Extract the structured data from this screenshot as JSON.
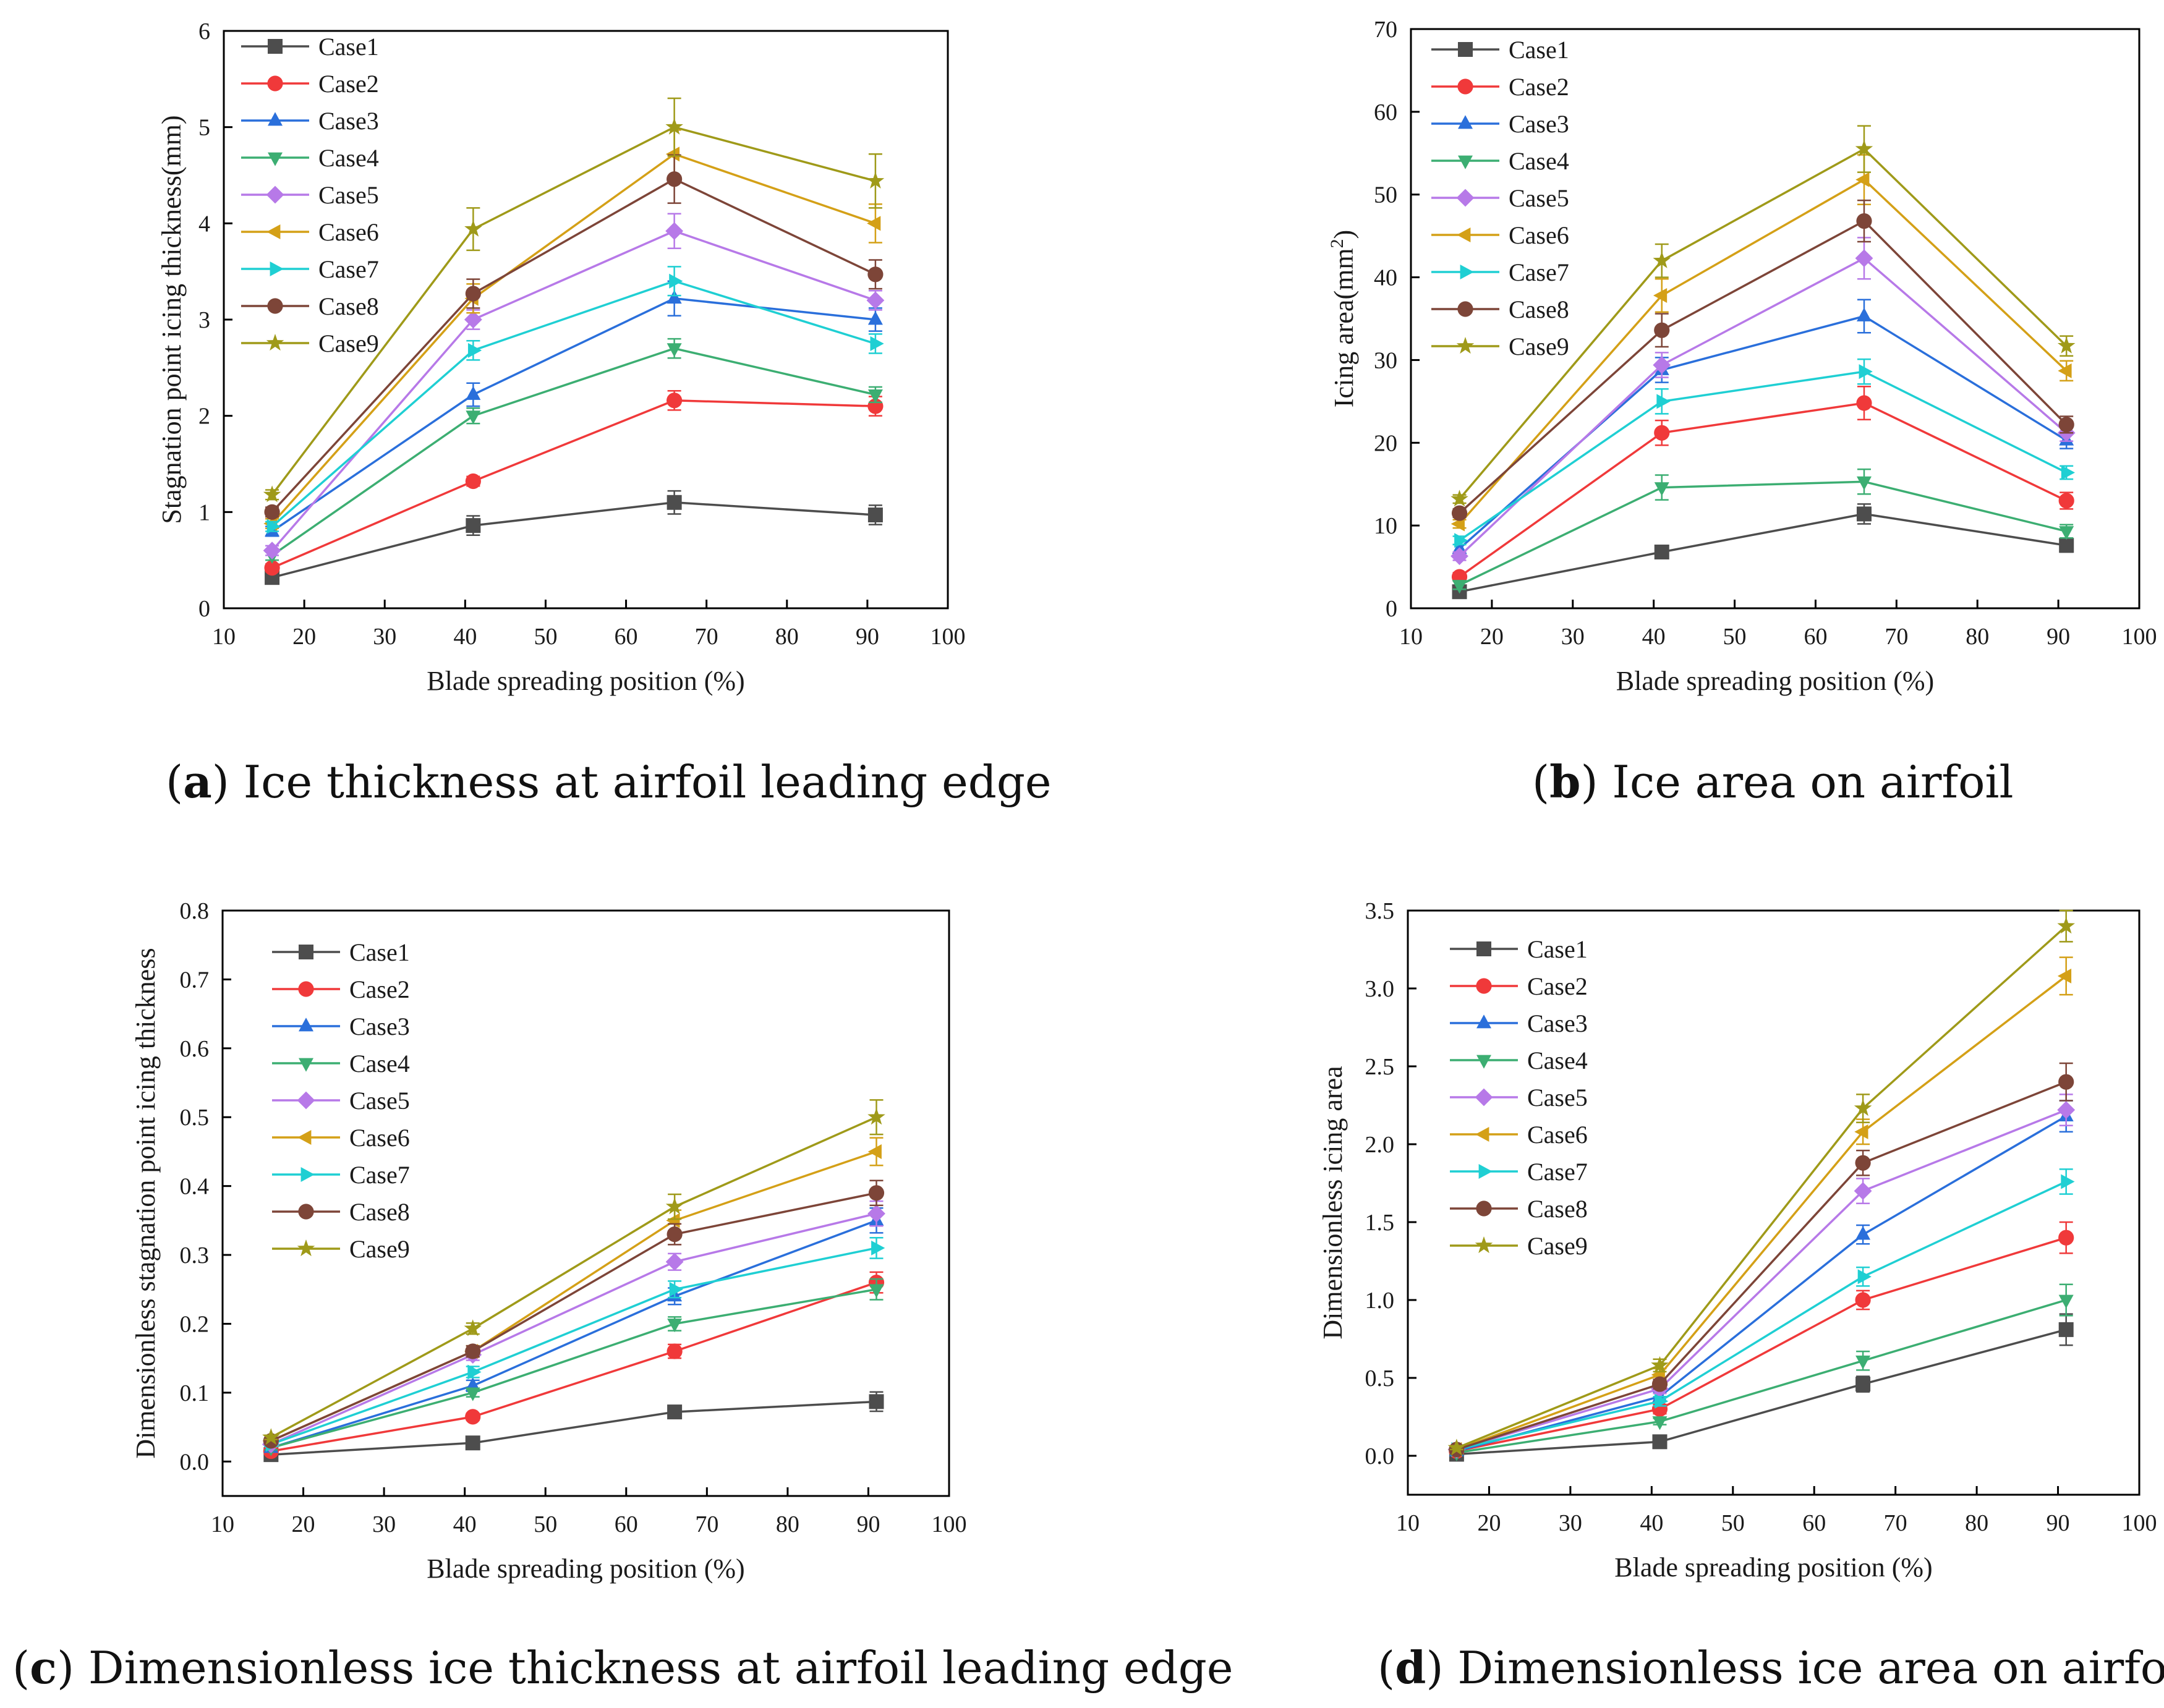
{
  "figure": {
    "colors": {
      "Case1": "#4d4d4d",
      "Case2": "#f0393a",
      "Case3": "#2a6fdb",
      "Case4": "#3cae72",
      "Case5": "#b779e8",
      "Case6": "#d4a017",
      "Case7": "#1fcfd3",
      "Case8": "#7d4538",
      "Case9": "#9f9a19"
    },
    "markers": {
      "Case1": "square",
      "Case2": "circle",
      "Case3": "triangle-up",
      "Case4": "triangle-down",
      "Case5": "diamond",
      "Case6": "triangle-left",
      "Case7": "triangle-right",
      "Case8": "circle",
      "Case9": "star"
    }
  },
  "chart_data": [
    {
      "id": "a",
      "type": "line",
      "caption_letter": "a",
      "caption_text": "Ice thickness at airfoil leading edge",
      "xlabel": "Blade spreading position (%)",
      "ylabel": "Stagnation point icing thickness(mm)",
      "xlim": [
        10,
        100
      ],
      "ylim": [
        0,
        6
      ],
      "xticks": [
        "10",
        "20",
        "30",
        "40",
        "50",
        "60",
        "70",
        "80",
        "90",
        "100"
      ],
      "yticks": [
        "0",
        "1",
        "2",
        "3",
        "4",
        "5",
        "6"
      ],
      "x": [
        16,
        41,
        66,
        91
      ],
      "series": [
        {
          "name": "Case1",
          "values": [
            0.32,
            0.86,
            1.1,
            0.97
          ],
          "err": [
            0.05,
            0.1,
            0.12,
            0.1
          ]
        },
        {
          "name": "Case2",
          "values": [
            0.42,
            1.32,
            2.16,
            2.1
          ],
          "err": [
            0.04,
            0.05,
            0.1,
            0.1
          ]
        },
        {
          "name": "Case3",
          "values": [
            0.8,
            2.22,
            3.22,
            3.0
          ],
          "err": [
            0.05,
            0.12,
            0.18,
            0.12
          ]
        },
        {
          "name": "Case4",
          "values": [
            0.55,
            2.0,
            2.7,
            2.22
          ],
          "err": [
            0.05,
            0.08,
            0.1,
            0.08
          ]
        },
        {
          "name": "Case5",
          "values": [
            0.6,
            3.0,
            3.92,
            3.2
          ],
          "err": [
            0.05,
            0.1,
            0.18,
            0.1
          ]
        },
        {
          "name": "Case6",
          "values": [
            0.88,
            3.22,
            4.72,
            4.0
          ],
          "err": [
            0.05,
            0.15,
            0.25,
            0.2
          ]
        },
        {
          "name": "Case7",
          "values": [
            0.85,
            2.68,
            3.4,
            2.75
          ],
          "err": [
            0.05,
            0.1,
            0.15,
            0.1
          ]
        },
        {
          "name": "Case8",
          "values": [
            1.0,
            3.27,
            4.46,
            3.47
          ],
          "err": [
            0.05,
            0.15,
            0.25,
            0.15
          ]
        },
        {
          "name": "Case9",
          "values": [
            1.18,
            3.94,
            5.0,
            4.44
          ],
          "err": [
            0.05,
            0.22,
            0.3,
            0.28
          ]
        }
      ],
      "legend": "top-left"
    },
    {
      "id": "b",
      "type": "line",
      "caption_letter": "b",
      "caption_text": "Ice area on airfoil",
      "xlabel": "Blade spreading position (%)",
      "ylabel_main": "Icing area(mm",
      "ylabel_sup": "2",
      "ylabel_end": ")",
      "xlim": [
        10,
        100
      ],
      "ylim": [
        0,
        70
      ],
      "xticks": [
        "10",
        "20",
        "30",
        "40",
        "50",
        "60",
        "70",
        "80",
        "90",
        "100"
      ],
      "yticks": [
        "0",
        "10",
        "20",
        "30",
        "40",
        "50",
        "60",
        "70"
      ],
      "x": [
        16,
        41,
        66,
        91
      ],
      "series": [
        {
          "name": "Case1",
          "values": [
            2.0,
            6.8,
            11.4,
            7.6
          ],
          "err": [
            0.5,
            0.8,
            1.2,
            0.8
          ]
        },
        {
          "name": "Case2",
          "values": [
            3.8,
            21.2,
            24.8,
            13.0
          ],
          "err": [
            0.5,
            1.5,
            2.0,
            1.0
          ]
        },
        {
          "name": "Case3",
          "values": [
            7.2,
            28.8,
            35.3,
            20.3
          ],
          "err": [
            0.5,
            1.5,
            2.0,
            1.0
          ]
        },
        {
          "name": "Case4",
          "values": [
            2.8,
            14.6,
            15.3,
            9.3
          ],
          "err": [
            0.5,
            1.5,
            1.5,
            0.8
          ]
        },
        {
          "name": "Case5",
          "values": [
            6.3,
            29.4,
            42.3,
            21.2
          ],
          "err": [
            0.5,
            1.5,
            2.5,
            1.0
          ]
        },
        {
          "name": "Case6",
          "values": [
            10.2,
            37.8,
            51.8,
            28.7
          ],
          "err": [
            0.5,
            2.0,
            3.0,
            1.2
          ]
        },
        {
          "name": "Case7",
          "values": [
            8.2,
            25.0,
            28.6,
            16.4
          ],
          "err": [
            0.5,
            1.5,
            1.5,
            0.8
          ]
        },
        {
          "name": "Case8",
          "values": [
            11.5,
            33.6,
            46.8,
            22.2
          ],
          "err": [
            0.5,
            2.0,
            2.5,
            1.0
          ]
        },
        {
          "name": "Case9",
          "values": [
            13.2,
            42.0,
            55.5,
            31.7
          ],
          "err": [
            0.5,
            2.0,
            2.8,
            1.2
          ]
        }
      ],
      "legend": "top-left"
    },
    {
      "id": "c",
      "type": "line",
      "caption_letter": "c",
      "caption_text": "Dimensionless ice thickness at airfoil leading edge",
      "xlabel": "Blade spreading position (%)",
      "ylabel": "Dimensionless stagnation point icing thickness",
      "xlim": [
        10,
        100
      ],
      "ylim": [
        -0.05,
        0.8
      ],
      "xticks": [
        "10",
        "20",
        "30",
        "40",
        "50",
        "60",
        "70",
        "80",
        "90",
        "100"
      ],
      "yticks": [
        "0.0",
        "0.1",
        "0.2",
        "0.3",
        "0.4",
        "0.5",
        "0.6",
        "0.7",
        "0.8"
      ],
      "ytick_values": [
        0,
        0.1,
        0.2,
        0.3,
        0.4,
        0.5,
        0.6,
        0.7,
        0.8
      ],
      "x": [
        16,
        41,
        66,
        91
      ],
      "series": [
        {
          "name": "Case1",
          "values": [
            0.01,
            0.027,
            0.072,
            0.087
          ],
          "err": [
            0.003,
            0.004,
            0.007,
            0.014
          ]
        },
        {
          "name": "Case2",
          "values": [
            0.015,
            0.065,
            0.16,
            0.26
          ],
          "err": [
            0.003,
            0.005,
            0.01,
            0.015
          ]
        },
        {
          "name": "Case3",
          "values": [
            0.02,
            0.11,
            0.24,
            0.35
          ],
          "err": [
            0.003,
            0.008,
            0.012,
            0.018
          ]
        },
        {
          "name": "Case4",
          "values": [
            0.02,
            0.1,
            0.2,
            0.25
          ],
          "err": [
            0.003,
            0.006,
            0.01,
            0.015
          ]
        },
        {
          "name": "Case5",
          "values": [
            0.025,
            0.155,
            0.29,
            0.36
          ],
          "err": [
            0.003,
            0.008,
            0.012,
            0.018
          ]
        },
        {
          "name": "Case6",
          "values": [
            0.03,
            0.16,
            0.35,
            0.45
          ],
          "err": [
            0.003,
            0.008,
            0.015,
            0.02
          ]
        },
        {
          "name": "Case7",
          "values": [
            0.025,
            0.13,
            0.25,
            0.31
          ],
          "err": [
            0.003,
            0.008,
            0.012,
            0.015
          ]
        },
        {
          "name": "Case8",
          "values": [
            0.03,
            0.16,
            0.33,
            0.39
          ],
          "err": [
            0.003,
            0.008,
            0.015,
            0.018
          ]
        },
        {
          "name": "Case9",
          "values": [
            0.035,
            0.193,
            0.37,
            0.5
          ],
          "err": [
            0.003,
            0.008,
            0.018,
            0.025
          ]
        }
      ],
      "legend": "top-left"
    },
    {
      "id": "d",
      "type": "line",
      "caption_letter": "d",
      "caption_text": "Dimensionless ice area on airfoil",
      "xlabel": "Blade spreading position (%)",
      "ylabel": "Dimensionless icing area",
      "xlim": [
        10,
        100
      ],
      "ylim": [
        -0.25,
        3.5
      ],
      "xticks": [
        "10",
        "20",
        "30",
        "40",
        "50",
        "60",
        "70",
        "80",
        "90",
        "100"
      ],
      "yticks": [
        "0.0",
        "0.5",
        "1.0",
        "1.5",
        "2.0",
        "2.5",
        "3.0",
        "3.5"
      ],
      "ytick_values": [
        0,
        0.5,
        1.0,
        1.5,
        2.0,
        2.5,
        3.0,
        3.5
      ],
      "x": [
        16,
        41,
        66,
        91
      ],
      "series": [
        {
          "name": "Case1",
          "values": [
            0.01,
            0.09,
            0.46,
            0.81
          ],
          "err": [
            0.01,
            0.01,
            0.05,
            0.1
          ]
        },
        {
          "name": "Case2",
          "values": [
            0.03,
            0.3,
            1.0,
            1.4
          ],
          "err": [
            0.01,
            0.03,
            0.06,
            0.1
          ]
        },
        {
          "name": "Case3",
          "values": [
            0.03,
            0.38,
            1.42,
            2.18
          ],
          "err": [
            0.01,
            0.03,
            0.06,
            0.1
          ]
        },
        {
          "name": "Case4",
          "values": [
            0.02,
            0.22,
            0.61,
            1.0
          ],
          "err": [
            0.01,
            0.02,
            0.06,
            0.1
          ]
        },
        {
          "name": "Case5",
          "values": [
            0.04,
            0.43,
            1.7,
            2.22
          ],
          "err": [
            0.01,
            0.03,
            0.08,
            0.1
          ]
        },
        {
          "name": "Case6",
          "values": [
            0.04,
            0.52,
            2.08,
            3.08
          ],
          "err": [
            0.01,
            0.04,
            0.08,
            0.12
          ]
        },
        {
          "name": "Case7",
          "values": [
            0.04,
            0.35,
            1.15,
            1.76
          ],
          "err": [
            0.01,
            0.03,
            0.06,
            0.08
          ]
        },
        {
          "name": "Case8",
          "values": [
            0.04,
            0.46,
            1.88,
            2.4
          ],
          "err": [
            0.01,
            0.03,
            0.08,
            0.12
          ]
        },
        {
          "name": "Case9",
          "values": [
            0.05,
            0.58,
            2.23,
            3.4
          ],
          "err": [
            0.01,
            0.04,
            0.09,
            0.1
          ]
        }
      ],
      "legend": "top-left"
    }
  ]
}
